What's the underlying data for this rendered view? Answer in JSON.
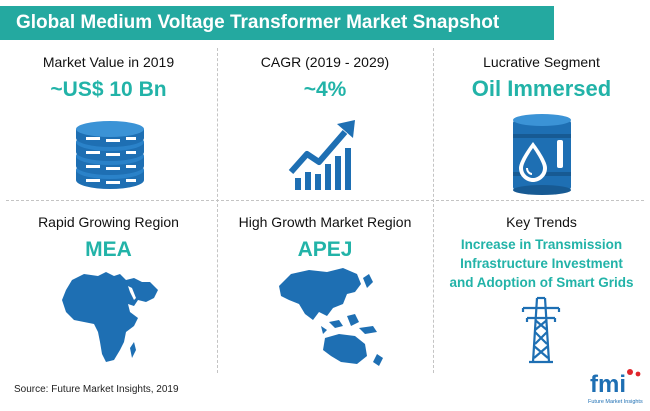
{
  "title": "Global Medium Voltage Transformer Market Snapshot",
  "cells": [
    {
      "label": "Market Value in 2019",
      "value": "~US$ 10 Bn",
      "icon": "coin-stack-icon"
    },
    {
      "label": "CAGR (2019 - 2029)",
      "value": "~4%",
      "icon": "growth-chart-icon"
    },
    {
      "label": "Lucrative Segment",
      "value": "Oil Immersed",
      "icon": "oil-barrel-icon"
    },
    {
      "label": "Rapid Growing Region",
      "value": "MEA",
      "icon": "africa-map-icon"
    },
    {
      "label": "High Growth Market Region",
      "value": "APEJ",
      "icon": "asia-pacific-map-icon"
    },
    {
      "label": "Key Trends",
      "icon": "transmission-tower-icon",
      "lines": [
        "Increase in Transmission",
        "Infrastructure Investment",
        "and Adoption of Smart Grids"
      ]
    }
  ],
  "source": "Source: Future Market Insights, 2019",
  "logo": {
    "text": "fmi",
    "tagline": "Future Market Insights"
  },
  "colors": {
    "accent": "#22b3a8",
    "title_bar": "#24a9a0",
    "icon": "#1e6fb3",
    "logo_red": "#e0262c"
  }
}
